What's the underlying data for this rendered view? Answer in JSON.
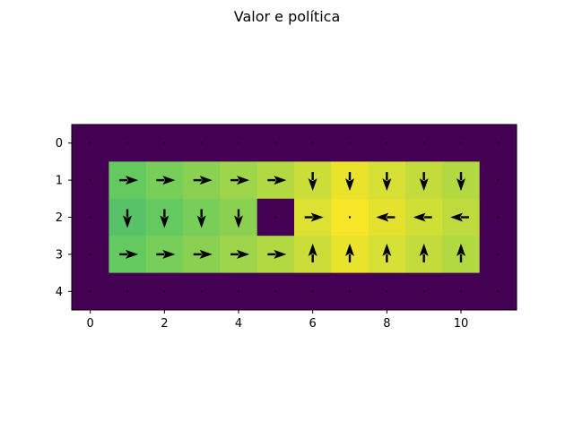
{
  "chart_data": {
    "type": "heatmap",
    "title": "Valor e política",
    "xlabel": "",
    "ylabel": "",
    "grid": false,
    "legend": "none",
    "xlim": [
      -0.5,
      11.5
    ],
    "ylim": [
      4.5,
      -0.5
    ],
    "x_ticks": [
      "0",
      "2",
      "4",
      "6",
      "8",
      "10"
    ],
    "x_tick_values": [
      0,
      2,
      4,
      6,
      8,
      10
    ],
    "y_ticks": [
      "0",
      "1",
      "2",
      "3",
      "4"
    ],
    "y_tick_values": [
      0,
      1,
      2,
      3,
      4
    ],
    "colormap": "viridis",
    "value_range": [
      0,
      1
    ],
    "rows": 5,
    "cols": 12,
    "values": [
      [
        0,
        0,
        0,
        0,
        0,
        0,
        0,
        0,
        0,
        0,
        0,
        0
      ],
      [
        0,
        0.76,
        0.79,
        0.82,
        0.85,
        0.88,
        0.92,
        0.97,
        0.94,
        0.91,
        0.88,
        0
      ],
      [
        0,
        0.72,
        0.76,
        0.79,
        0.82,
        0,
        0.95,
        0.99,
        0.96,
        0.93,
        0.9,
        0
      ],
      [
        0,
        0.76,
        0.79,
        0.82,
        0.85,
        0.88,
        0.92,
        0.97,
        0.94,
        0.91,
        0.88,
        0
      ],
      [
        0,
        0,
        0,
        0,
        0,
        0,
        0,
        0,
        0,
        0,
        0,
        0
      ]
    ],
    "policy": [
      [
        "·",
        "·",
        "·",
        "·",
        "·",
        "·",
        "·",
        "·",
        "·",
        "·",
        "·",
        "·"
      ],
      [
        "·",
        "right",
        "right",
        "right",
        "right",
        "right",
        "down",
        "down",
        "down",
        "down",
        "down",
        "·"
      ],
      [
        "·",
        "down",
        "down",
        "down",
        "down",
        "·",
        "right",
        "·",
        "left",
        "left",
        "left",
        "·"
      ],
      [
        "·",
        "right",
        "right",
        "right",
        "right",
        "right",
        "up",
        "up",
        "up",
        "up",
        "up",
        "·"
      ],
      [
        "·",
        "·",
        "·",
        "·",
        "·",
        "·",
        "·",
        "·",
        "·",
        "·",
        "·",
        "·"
      ]
    ]
  }
}
